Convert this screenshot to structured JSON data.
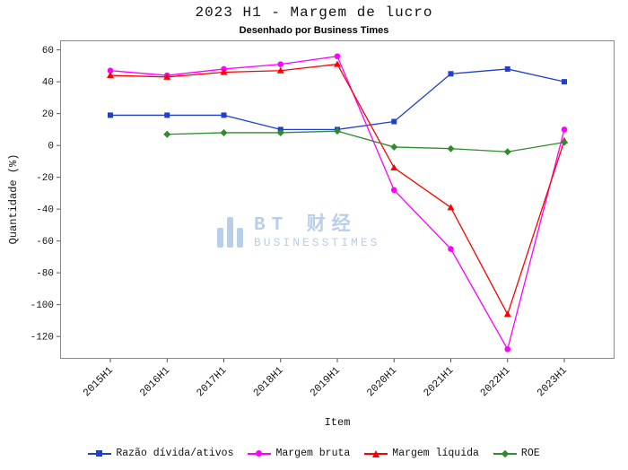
{
  "chart_data": {
    "type": "line",
    "title": "2023 H1 - Margem de lucro",
    "subtitle": "Desenhado por Business Times",
    "xlabel": "Item",
    "ylabel": "Quantidade (%)",
    "categories": [
      "2015H1",
      "2016H1",
      "2017H1",
      "2018H1",
      "2019H1",
      "2020H1",
      "2021H1",
      "2022H1",
      "2023H1"
    ],
    "yticks": [
      60,
      40,
      20,
      0,
      -20,
      -40,
      -60,
      -80,
      -100,
      -120
    ],
    "ylim": [
      -134,
      66
    ],
    "grid": false,
    "legend_position": "bottom",
    "series": [
      {
        "name": "Razão dívida/ativos",
        "marker": "square",
        "color": "#2040cc",
        "values": [
          19,
          19,
          19,
          10,
          10,
          15,
          45,
          48,
          40
        ]
      },
      {
        "name": "Margem bruta",
        "marker": "circle",
        "color": "#ff00ff",
        "values": [
          47,
          44,
          48,
          51,
          56,
          -28,
          -65,
          -128,
          10
        ]
      },
      {
        "name": "Margem líquida",
        "marker": "triangle",
        "color": "#ff0000",
        "values": [
          44,
          43,
          46,
          47,
          51,
          -14,
          -39,
          -106,
          3
        ]
      },
      {
        "name": "ROE",
        "marker": "diamond",
        "color": "#2e8b2e",
        "values": [
          null,
          7,
          8,
          8,
          9,
          -1,
          -2,
          -4,
          2
        ]
      }
    ],
    "watermark": {
      "line1": "BT 财经",
      "line2": "BUSINESSTIMES"
    }
  }
}
